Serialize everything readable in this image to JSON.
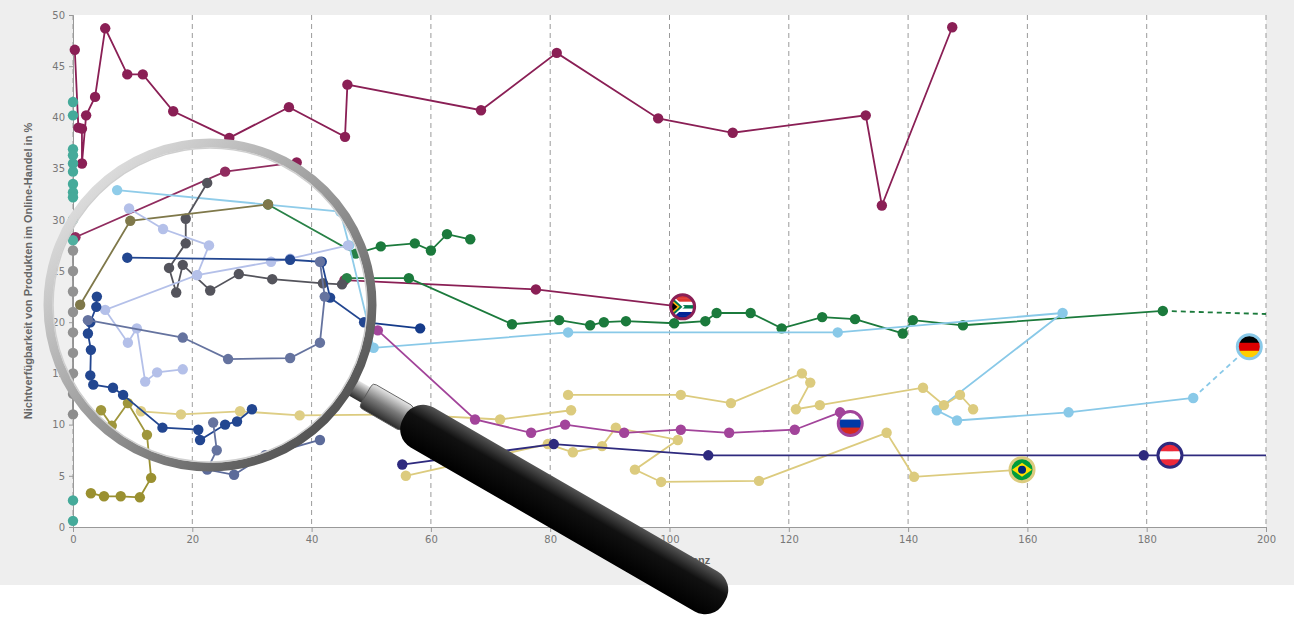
{
  "chart_data": {
    "type": "line",
    "x_label": "7-Tage-Inzidenz",
    "y_label": "Nichtverfügbarkeit von Produkten im Online-Handel in %",
    "xlim": [
      0,
      200
    ],
    "xticks": [
      0,
      20,
      40,
      60,
      80,
      100,
      120,
      140,
      160,
      180,
      200
    ],
    "ylim": [
      0,
      50
    ],
    "yticks": [
      0,
      5,
      10,
      15,
      20,
      25,
      30,
      35,
      40,
      45,
      50
    ],
    "grid": true,
    "series": [
      {
        "color": "#8a1f55",
        "marker": "circle",
        "line_style": "solid",
        "x": [
          0.3,
          0.9,
          1.5,
          1.5,
          2.2,
          3.7,
          5.4,
          9.1,
          11.7,
          16.8,
          26.2,
          36.2,
          45.6,
          46,
          68.4,
          81.1,
          98.1,
          110.6,
          132.9,
          135.6,
          147.4
        ],
        "values": [
          46.6,
          39,
          38.9,
          35.5,
          40.2,
          42,
          48.7,
          44.2,
          44.2,
          40.6,
          38,
          41,
          38.1,
          43.2,
          40.7,
          46.3,
          39.9,
          38.5,
          40.2,
          31.4,
          48.8
        ]
      },
      {
        "color": "#8a1f55",
        "marker": "circle",
        "line_style": "solid",
        "x": [
          0.4,
          25.5,
          37.5
        ],
        "values": [
          28.3,
          34.7,
          35.6
        ]
      },
      {
        "color": "#8a1f55",
        "marker": "circle",
        "line_style": "solid",
        "x": [
          45.5,
          77.6,
          102.2
        ],
        "values": [
          24.1,
          23.2,
          21.5
        ]
      },
      {
        "color": "#1b7a3c",
        "marker": "circle",
        "line_style": "solid",
        "x": [
          32.7,
          47.4,
          51.6,
          57.3,
          60,
          62.7,
          66.6
        ],
        "values": [
          31.5,
          26.7,
          27.4,
          27.7,
          27,
          28.6,
          28.1
        ]
      },
      {
        "color": "#1b7a3c",
        "marker": "circle",
        "line_style": "solid",
        "x": [
          45.9,
          56.3,
          73.6,
          81.5,
          86.7,
          89,
          92.7,
          100.8,
          106,
          107.9,
          113.6,
          118.8,
          125.6,
          131.1,
          139.1,
          140.8,
          149.2,
          182.7
        ],
        "values": [
          24.3,
          24.3,
          19.8,
          20.2,
          19.7,
          20,
          20.1,
          19.9,
          20.1,
          20.9,
          20.9,
          19.4,
          20.5,
          20.3,
          18.9,
          20.2,
          19.7,
          21.1
        ]
      },
      {
        "color": "#1b7a3c",
        "marker": "none",
        "line_style": "dashed",
        "x": [
          182.7,
          200
        ],
        "values": [
          21.1,
          20.8
        ]
      },
      {
        "color": "#89c9e8",
        "marker": "circle",
        "line_style": "solid",
        "x": [
          7.4,
          44.8,
          46.3,
          50.4,
          83,
          128.2,
          165.9,
          144.8,
          148.2,
          166.9,
          187.8
        ],
        "values": [
          32.9,
          30.8,
          27.5,
          17.5,
          19,
          19,
          20.9,
          11.4,
          10.4,
          11.2,
          12.6
        ]
      },
      {
        "color": "#89c9e8",
        "marker": "none",
        "line_style": "dashed",
        "x": [
          187.8,
          197.2
        ],
        "values": [
          12.6,
          17.6
        ]
      },
      {
        "color": "#dccb7e",
        "marker": "circle",
        "line_style": "solid",
        "x": [
          83,
          101.9,
          110.3,
          122.2,
          123.6,
          121.2,
          125.2,
          142.5,
          146,
          148.7,
          150.9
        ],
        "values": [
          12.9,
          12.9,
          12.1,
          15,
          14.1,
          11.5,
          11.9,
          13.6,
          11.9,
          12.9,
          11.5
        ]
      },
      {
        "color": "#dccb7e",
        "marker": "circle",
        "line_style": "solid",
        "x": [
          11.4,
          18.1,
          28,
          38,
          55.8,
          71.6,
          83.5
        ],
        "values": [
          11.3,
          11,
          11.3,
          10.9,
          11,
          10.5,
          11.4
        ]
      },
      {
        "color": "#dccb7e",
        "marker": "circle",
        "line_style": "solid",
        "x": [
          55.8,
          79.6,
          83.8,
          88.7,
          91,
          101.4,
          94.2,
          98.6,
          115,
          136.4,
          141,
          159.1
        ],
        "values": [
          5,
          8.1,
          7.3,
          7.9,
          9.7,
          8.5,
          5.6,
          4.4,
          4.5,
          9.2,
          4.9,
          5.6
        ]
      },
      {
        "color": "#a2449a",
        "marker": "circle",
        "line_style": "solid",
        "x": [
          51.1,
          67.4,
          76.8,
          82.5,
          92.4,
          101.9,
          110,
          121,
          128.6,
          130.3
        ],
        "values": [
          19.2,
          10.5,
          9.2,
          10,
          9.2,
          9.5,
          9.2,
          9.5,
          11.2,
          10.1
        ]
      },
      {
        "color": "#2e2a7e",
        "marker": "circle",
        "line_style": "solid",
        "x": [
          55.2,
          80.6,
          106.5,
          179.5,
          183.9
        ],
        "values": [
          6.1,
          8.1,
          7,
          7,
          7
        ]
      },
      {
        "color": "#2e2a7e",
        "marker": "none",
        "line_style": "solid",
        "x": [
          183.9,
          200
        ],
        "values": [
          7,
          7
        ]
      },
      {
        "color": "#45aa9a",
        "marker": "circle",
        "line_style": "none",
        "x": [
          0,
          0,
          0,
          0,
          0,
          0,
          0,
          0,
          0,
          0,
          0,
          0,
          0
        ],
        "values": [
          41.5,
          40.2,
          36.9,
          36.3,
          35.5,
          34.7,
          33.5,
          32.7,
          32.2,
          30,
          28,
          2.6,
          0.6
        ]
      },
      {
        "color": "#8c8c8c",
        "marker": "circle",
        "line_style": "solid",
        "x": [
          0,
          0,
          0,
          0,
          0,
          0,
          0,
          0,
          0
        ],
        "values": [
          27,
          25,
          23,
          21,
          19,
          17,
          15,
          13,
          11
        ]
      },
      {
        "color": "#4a4a52",
        "marker": "circle",
        "line_style": "solid",
        "x": [
          22.5,
          18.9,
          18.9,
          16.1,
          17.3,
          18.4,
          23,
          27.8,
          33.4,
          41.9,
          45.1
        ],
        "values": [
          33.6,
          30.1,
          27.7,
          25.3,
          22.9,
          25.6,
          23.1,
          24.7,
          24.2,
          23.8,
          23.7
        ]
      },
      {
        "color": "#77703f",
        "marker": "circle",
        "line_style": "solid",
        "x": [
          1.2,
          9.6,
          32.7
        ],
        "values": [
          21.7,
          29.9,
          31.5
        ]
      },
      {
        "color": "#9a9030",
        "marker": "circle",
        "line_style": "solid",
        "x": [
          4.7,
          6.5,
          9.2,
          12.4,
          13.1,
          11.2,
          8,
          5.2,
          3
        ],
        "values": [
          11.4,
          9.9,
          12.1,
          9,
          4.8,
          2.9,
          3,
          3,
          3.3
        ]
      },
      {
        "color": "#b0bde8",
        "marker": "circle",
        "line_style": "solid",
        "x": [
          9.4,
          15.1,
          22.8,
          20.8,
          5.4,
          9.2,
          10.7,
          12.1,
          14.1,
          18.4
        ],
        "values": [
          31.1,
          29.1,
          27.5,
          24.6,
          21.2,
          18,
          19.4,
          14.2,
          15.1,
          15.4
        ]
      },
      {
        "color": "#b0bde8",
        "marker": "circle",
        "line_style": "solid",
        "x": [
          20.8,
          33.2,
          36.4,
          46.1
        ],
        "values": [
          24.6,
          25.9,
          26.2,
          27.5
        ]
      },
      {
        "color": "#153b8a",
        "marker": "circle",
        "line_style": "solid",
        "x": [
          9.1,
          36.4,
          41.7,
          43.1,
          48.8,
          58.2
        ],
        "values": [
          26.3,
          26.1,
          25.9,
          22.4,
          20,
          19.4
        ]
      },
      {
        "color": "#153b8a",
        "marker": "circle",
        "line_style": "solid",
        "x": [
          4,
          3.9,
          2.9,
          2.5,
          3,
          2.9,
          3.4,
          6.7,
          8.4,
          15,
          21,
          21.3,
          25.5,
          27.5,
          30
        ],
        "values": [
          22.5,
          21.5,
          20,
          18.9,
          17.3,
          14.8,
          13.9,
          13.6,
          12.9,
          9.7,
          9.5,
          8.5,
          10,
          10.3,
          11.5
        ]
      },
      {
        "color": "#5c6b9a",
        "marker": "circle",
        "line_style": "solid",
        "x": [
          2.5,
          18.4,
          26,
          36.4,
          41.4,
          42.2,
          41.4
        ],
        "values": [
          20.2,
          18.5,
          16.4,
          16.5,
          18,
          22.5,
          25.9
        ]
      },
      {
        "color": "#5c6b9a",
        "marker": "circle",
        "line_style": "solid",
        "x": [
          23.5,
          24.1,
          22.5,
          27,
          32.2,
          41.4
        ],
        "values": [
          10.2,
          7.5,
          5.6,
          5.1,
          7,
          8.5
        ]
      }
    ]
  }
}
